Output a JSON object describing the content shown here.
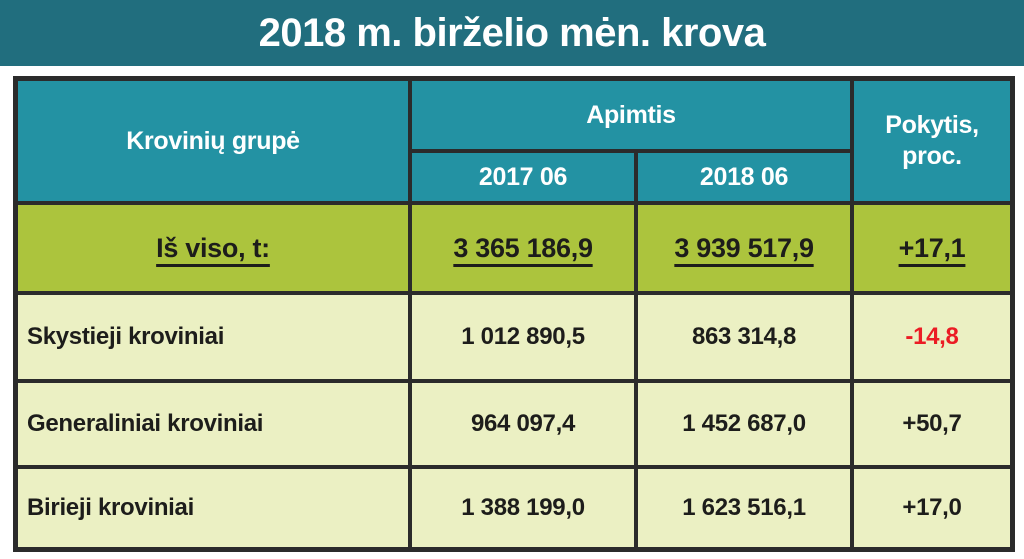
{
  "title": "2018 m. birželio mėn. krova",
  "colors": {
    "title_band_bg": "#216E7E",
    "header_bg": "#2392A3",
    "header_text": "#FFFFFF",
    "total_row_bg": "#ACC43D",
    "data_row_bg": "#EBF0C3",
    "border": "#2B2B2B",
    "text_dark": "#1D1D1B",
    "negative_value": "#EB1C24"
  },
  "table": {
    "header": {
      "group_label": "Krovinių grupė",
      "volume_label": "Apimtis",
      "col_2017": "2017 06",
      "col_2018": "2018 06",
      "change_label": "Pokytis,\nproc."
    },
    "total_row": {
      "label": "Iš viso, t:",
      "v2017": "3 365 186,9",
      "v2018": "3 939 517,9",
      "change": "+17,1",
      "change_color": "#1D1D1B"
    },
    "rows": [
      {
        "label": "Skystieji kroviniai",
        "v2017": "1 012 890,5",
        "v2018": "863 314,8",
        "change": "-14,8",
        "change_color": "#EB1C24"
      },
      {
        "label": "Generaliniai kroviniai",
        "v2017": "964 097,4",
        "v2018": "1 452 687,0",
        "change": "+50,7",
        "change_color": "#1D1D1B"
      },
      {
        "label": "Birieji kroviniai",
        "v2017": "1 388 199,0",
        "v2018": "1 623 516,1",
        "change": "+17,0",
        "change_color": "#1D1D1B"
      }
    ]
  }
}
